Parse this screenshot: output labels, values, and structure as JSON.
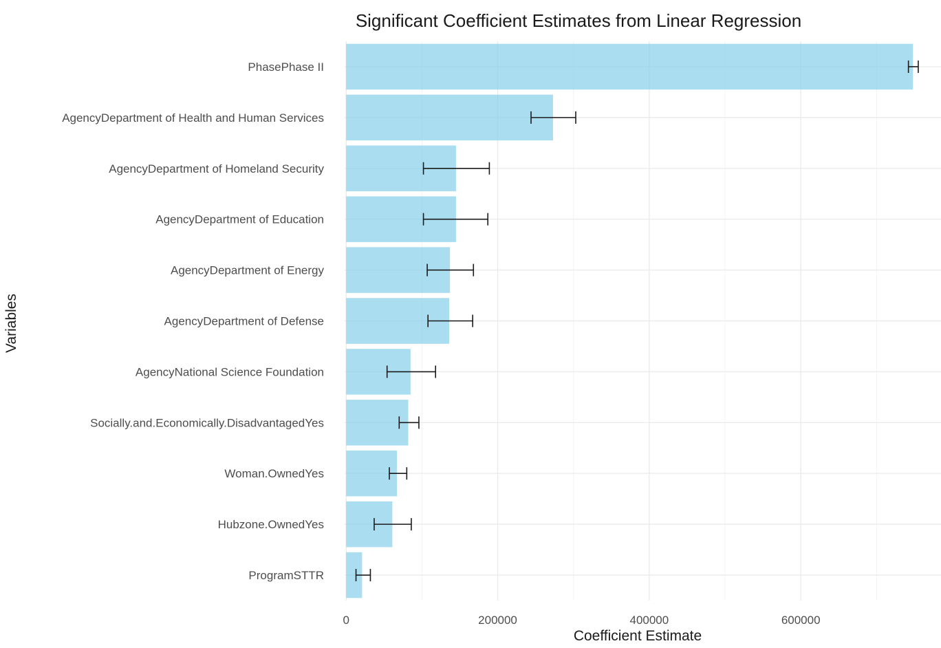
{
  "chart_data": {
    "type": "bar",
    "orientation": "horizontal",
    "title": "Significant Coefficient Estimates from Linear Regression",
    "xlabel": "Coefficient Estimate",
    "ylabel": "Variables",
    "xlim": [
      -2000,
      785000
    ],
    "xticks": [
      0,
      200000,
      400000,
      600000
    ],
    "xtick_labels": [
      "0",
      "200000",
      "400000",
      "600000"
    ],
    "grid": true,
    "bar_color": "#87ceeb",
    "errorbar_color": "#1a1a1a",
    "categories": [
      "PhasePhase II",
      "AgencyDepartment of Health and Human Services",
      "AgencyDepartment of Homeland Security",
      "AgencyDepartment of Education",
      "AgencyDepartment of Energy",
      "AgencyDepartment of Defense",
      "AgencyNational Science Foundation",
      "Socially.and.Economically.DisadvantagedYes",
      "Woman.OwnedYes",
      "Hubzone.OwnedYes",
      "ProgramSTTR"
    ],
    "values": [
      748000,
      273000,
      145000,
      145000,
      137000,
      136000,
      85000,
      82000,
      67000,
      61000,
      21000
    ],
    "error_low": [
      742000,
      244000,
      102000,
      102000,
      107000,
      108000,
      54000,
      70000,
      57000,
      37000,
      13000
    ],
    "error_high": [
      755000,
      303000,
      189000,
      187000,
      168000,
      167000,
      118000,
      96000,
      80000,
      86000,
      32000
    ]
  }
}
